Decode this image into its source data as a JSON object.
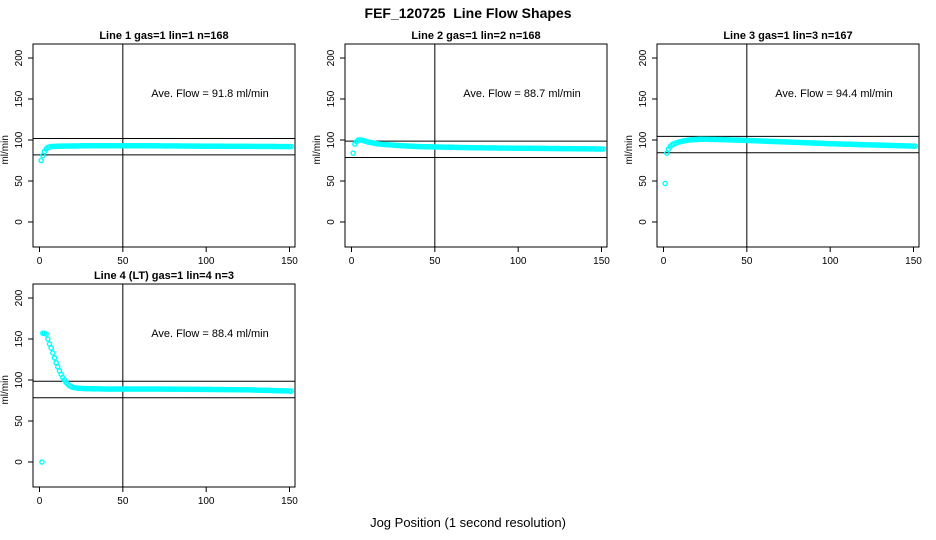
{
  "chart_data": {
    "type": "scatter",
    "title": "FEF_120725  Line Flow Shapes",
    "xlabel": "Jog Position (1 second resolution)",
    "ylabel": "ml/min",
    "point_color": "#00ffff",
    "axis_color": "#000000",
    "background_color": "#ffffff",
    "grid": false,
    "legend": "none",
    "xticks": [
      0,
      50,
      100,
      150
    ],
    "yticks": [
      0,
      50,
      100,
      150,
      200
    ],
    "xlim": [
      0,
      151
    ],
    "ylim": [
      -30,
      215
    ],
    "panels": [
      {
        "title": "Line 1 gas=1 lin=1 n=168",
        "n": 168,
        "ave_flow_ml_min": 91.8,
        "annotation": "Ave. Flow =  91.8  ml/min",
        "vline_x": 50,
        "hlines_y": [
          101.8,
          81.8
        ],
        "x_end": 151,
        "keypoints": [
          [
            1,
            75
          ],
          [
            2,
            81
          ],
          [
            3,
            86
          ],
          [
            4,
            89
          ],
          [
            5,
            91
          ],
          [
            7,
            92
          ],
          [
            12,
            92.5
          ],
          [
            30,
            93
          ],
          [
            60,
            93
          ],
          [
            100,
            92.5
          ],
          [
            151,
            92
          ]
        ],
        "extra_points": []
      },
      {
        "title": "Line 2 gas=1 lin=2 n=168",
        "n": 168,
        "ave_flow_ml_min": 88.7,
        "annotation": "Ave. Flow =  88.7  ml/min",
        "vline_x": 50,
        "hlines_y": [
          98.7,
          78.7
        ],
        "x_end": 151,
        "keypoints": [
          [
            1,
            84
          ],
          [
            2,
            95
          ],
          [
            3,
            98
          ],
          [
            4,
            100
          ],
          [
            6,
            100
          ],
          [
            10,
            97.5
          ],
          [
            15,
            95.5
          ],
          [
            20,
            94.5
          ],
          [
            30,
            93
          ],
          [
            40,
            92
          ],
          [
            50,
            91.5
          ],
          [
            75,
            90.5
          ],
          [
            100,
            90
          ],
          [
            125,
            89.5
          ],
          [
            151,
            89
          ]
        ],
        "extra_points": []
      },
      {
        "title": "Line 3 gas=1 lin=3 n=167",
        "n": 167,
        "ave_flow_ml_min": 94.4,
        "annotation": "Ave. Flow =  94.4  ml/min",
        "vline_x": 50,
        "hlines_y": [
          104.4,
          84.4
        ],
        "x_end": 151,
        "keypoints": [
          [
            1,
            47
          ],
          [
            2,
            84
          ],
          [
            3,
            89
          ],
          [
            4,
            92
          ],
          [
            5,
            94
          ],
          [
            7,
            96
          ],
          [
            10,
            98
          ],
          [
            15,
            100
          ],
          [
            22,
            101
          ],
          [
            35,
            100.5
          ],
          [
            50,
            99.5
          ],
          [
            75,
            97.5
          ],
          [
            100,
            95.5
          ],
          [
            125,
            94
          ],
          [
            151,
            92.5
          ]
        ],
        "extra_points": []
      },
      {
        "title": "Line 4 (LT) gas=1 lin=4 n=3",
        "n": 3,
        "ave_flow_ml_min": 88.4,
        "annotation": "Ave. Flow =  88.4  ml/min",
        "vline_x": 50,
        "hlines_y": [
          98.4,
          78.4
        ],
        "x_end": 151,
        "keypoints": [
          [
            2,
            157
          ],
          [
            3,
            157
          ],
          [
            4,
            156
          ],
          [
            5,
            150
          ],
          [
            6,
            144
          ],
          [
            7,
            139
          ],
          [
            8,
            133
          ],
          [
            9,
            127
          ],
          [
            10,
            121
          ],
          [
            11,
            116
          ],
          [
            12,
            111
          ],
          [
            13,
            107
          ],
          [
            14,
            103
          ],
          [
            15,
            100
          ],
          [
            16,
            97
          ],
          [
            17,
            95
          ],
          [
            18,
            93
          ],
          [
            20,
            91
          ],
          [
            23,
            90
          ],
          [
            27,
            89.5
          ],
          [
            40,
            89
          ],
          [
            70,
            89
          ],
          [
            100,
            88.5
          ],
          [
            125,
            88
          ],
          [
            151,
            86.5
          ]
        ],
        "extra_points": [
          [
            1.5,
            0
          ]
        ]
      }
    ]
  }
}
